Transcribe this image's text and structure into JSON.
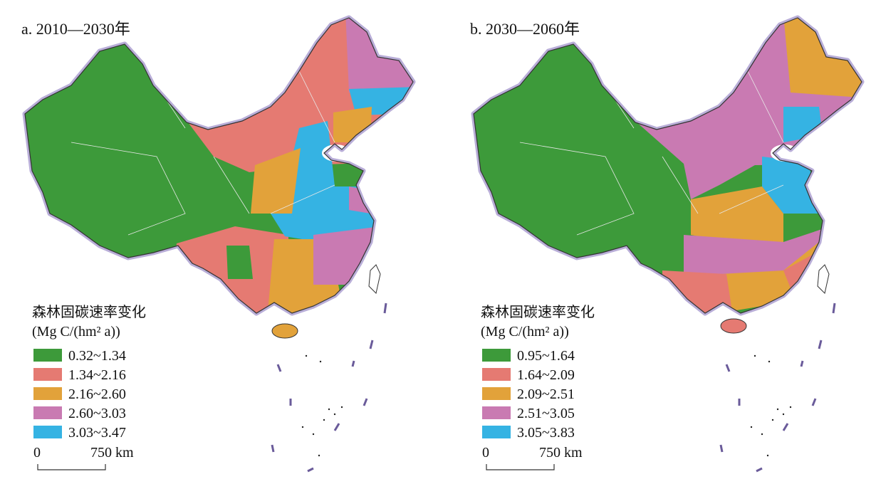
{
  "panels": [
    {
      "title": "a. 2010—2030年",
      "legend": {
        "title": "森林固碳速率变化",
        "unit": "(Mg C/(hm² a))",
        "items": [
          {
            "label": "0.32~1.34",
            "color": "#3d9a3a"
          },
          {
            "label": "1.34~2.16",
            "color": "#e57a72"
          },
          {
            "label": "2.16~2.60",
            "color": "#e2a23a"
          },
          {
            "label": "2.60~3.03",
            "color": "#c97ab2"
          },
          {
            "label": "3.03~3.47",
            "color": "#35b3e3"
          }
        ]
      },
      "scale": {
        "start": "0",
        "end": "750 km"
      }
    },
    {
      "title": "b. 2030—2060年",
      "legend": {
        "title": "森林固碳速率变化",
        "unit": "(Mg C/(hm² a))",
        "items": [
          {
            "label": "0.95~1.64",
            "color": "#3d9a3a"
          },
          {
            "label": "1.64~2.09",
            "color": "#e57a72"
          },
          {
            "label": "2.09~2.51",
            "color": "#e2a23a"
          },
          {
            "label": "2.51~3.05",
            "color": "#c97ab2"
          },
          {
            "label": "3.05~3.83",
            "color": "#35b3e3"
          }
        ]
      },
      "scale": {
        "start": "0",
        "end": "750 km"
      }
    }
  ]
}
